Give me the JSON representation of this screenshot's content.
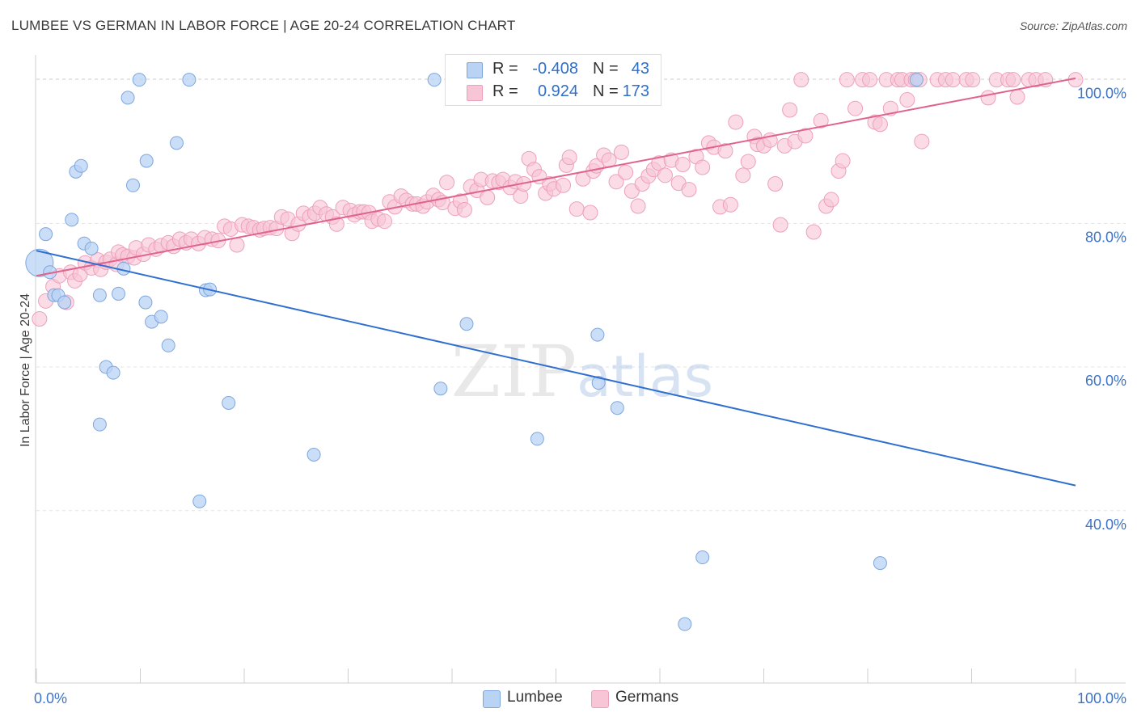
{
  "title": "LUMBEE VS GERMAN IN LABOR FORCE | AGE 20-24 CORRELATION CHART",
  "source": "Source: ZipAtlas.com",
  "watermark": "ZIPatlas",
  "legend": {
    "rows": [
      {
        "r_label": "R =",
        "r_value": "-0.408",
        "n_label": "N =",
        "n_value": "43"
      },
      {
        "r_label": "R =",
        "r_value": "0.924",
        "n_label": "N =",
        "n_value": "173"
      }
    ]
  },
  "bottom_legend": {
    "lumbee": "Lumbee",
    "germans": "Germans"
  },
  "colors": {
    "lumbee_fill": "#b9d3f5",
    "lumbee_stroke": "#7fa6dc",
    "lumbee_line": "#2f6fcf",
    "germans_fill": "#f8c5d6",
    "germans_stroke": "#eda0bb",
    "germans_line": "#e0638f",
    "tick_label": "#3d74c8"
  },
  "chart_data": {
    "type": "scatter",
    "title": "LUMBEE VS GERMAN IN LABOR FORCE | AGE 20-24 CORRELATION CHART",
    "xlabel": "",
    "ylabel": "In Labor Force | Age 20-24",
    "xlim": [
      0,
      100
    ],
    "ylim": [
      16,
      103
    ],
    "x_tick_labels": [
      "0.0%",
      "100.0%"
    ],
    "y_ticks": [
      40,
      60,
      80,
      100
    ],
    "y_tick_labels": [
      "40.0%",
      "60.0%",
      "80.0%",
      "100.0%"
    ],
    "series": [
      {
        "name": "Lumbee",
        "r": -0.408,
        "n": 43,
        "trend": {
          "x": [
            0,
            100
          ],
          "y": [
            76.2,
            43.5
          ]
        },
        "points": [
          [
            0.3,
            74.5
          ],
          [
            0.9,
            78.5
          ],
          [
            1.3,
            73.2
          ],
          [
            1.7,
            70.0
          ],
          [
            2.1,
            70.0
          ],
          [
            2.7,
            69.0
          ],
          [
            3.4,
            80.5
          ],
          [
            3.8,
            87.2
          ],
          [
            4.3,
            88.0
          ],
          [
            4.6,
            77.2
          ],
          [
            5.3,
            76.5
          ],
          [
            6.1,
            70.0
          ],
          [
            6.1,
            52.0
          ],
          [
            6.7,
            60.0
          ],
          [
            7.4,
            59.2
          ],
          [
            7.9,
            70.2
          ],
          [
            8.4,
            73.7
          ],
          [
            8.8,
            97.5
          ],
          [
            9.3,
            85.3
          ],
          [
            9.9,
            100.0
          ],
          [
            10.5,
            69.0
          ],
          [
            10.6,
            88.7
          ],
          [
            11.1,
            66.3
          ],
          [
            12.0,
            67.0
          ],
          [
            12.7,
            63.0
          ],
          [
            13.5,
            91.2
          ],
          [
            14.7,
            100.0
          ],
          [
            15.7,
            41.3
          ],
          [
            16.3,
            70.7
          ],
          [
            16.7,
            70.8
          ],
          [
            18.5,
            55.0
          ],
          [
            26.7,
            47.8
          ],
          [
            38.3,
            100.0
          ],
          [
            38.9,
            57.0
          ],
          [
            41.4,
            66.0
          ],
          [
            48.2,
            50.0
          ],
          [
            54.0,
            64.5
          ],
          [
            54.1,
            57.8
          ],
          [
            55.9,
            54.3
          ],
          [
            64.1,
            33.5
          ],
          [
            62.4,
            24.2
          ],
          [
            81.2,
            32.7
          ],
          [
            84.7,
            100.0
          ]
        ]
      },
      {
        "name": "Germans",
        "r": 0.924,
        "n": 173,
        "trend": {
          "x": [
            0,
            100
          ],
          "y": [
            72.7,
            100.2
          ]
        },
        "points": [
          [
            0.3,
            66.7
          ],
          [
            0.9,
            69.2
          ],
          [
            1.6,
            71.2
          ],
          [
            2.2,
            72.7
          ],
          [
            2.9,
            69.0
          ],
          [
            3.3,
            73.2
          ],
          [
            3.7,
            72.0
          ],
          [
            4.2,
            72.9
          ],
          [
            4.7,
            74.5
          ],
          [
            5.3,
            73.8
          ],
          [
            5.9,
            74.9
          ],
          [
            6.2,
            73.6
          ],
          [
            6.7,
            74.6
          ],
          [
            7.1,
            75.0
          ],
          [
            7.7,
            74.3
          ],
          [
            7.9,
            76.0
          ],
          [
            8.3,
            75.6
          ],
          [
            8.8,
            75.4
          ],
          [
            9.4,
            75.2
          ],
          [
            9.6,
            76.6
          ],
          [
            10.3,
            75.7
          ],
          [
            10.8,
            77.0
          ],
          [
            11.5,
            76.4
          ],
          [
            12.0,
            76.9
          ],
          [
            12.7,
            77.3
          ],
          [
            13.2,
            76.8
          ],
          [
            13.8,
            77.8
          ],
          [
            14.4,
            77.3
          ],
          [
            14.9,
            77.8
          ],
          [
            15.6,
            77.2
          ],
          [
            16.2,
            78.0
          ],
          [
            16.9,
            77.8
          ],
          [
            17.5,
            77.6
          ],
          [
            18.1,
            79.6
          ],
          [
            18.7,
            79.2
          ],
          [
            19.3,
            77.0
          ],
          [
            19.8,
            79.8
          ],
          [
            20.4,
            79.6
          ],
          [
            20.9,
            79.4
          ],
          [
            21.5,
            79.1
          ],
          [
            21.9,
            79.3
          ],
          [
            22.5,
            79.4
          ],
          [
            23.1,
            79.3
          ],
          [
            23.6,
            80.9
          ],
          [
            24.2,
            80.6
          ],
          [
            24.6,
            78.6
          ],
          [
            25.2,
            79.9
          ],
          [
            25.7,
            81.4
          ],
          [
            26.3,
            80.9
          ],
          [
            26.8,
            81.4
          ],
          [
            27.3,
            82.2
          ],
          [
            27.9,
            81.3
          ],
          [
            28.5,
            80.9
          ],
          [
            28.9,
            79.9
          ],
          [
            29.5,
            82.2
          ],
          [
            30.2,
            81.8
          ],
          [
            30.6,
            81.2
          ],
          [
            31.1,
            81.6
          ],
          [
            31.5,
            81.6
          ],
          [
            32.0,
            81.5
          ],
          [
            32.3,
            80.3
          ],
          [
            32.9,
            80.6
          ],
          [
            33.5,
            80.3
          ],
          [
            34.0,
            83.0
          ],
          [
            34.5,
            82.3
          ],
          [
            35.1,
            83.8
          ],
          [
            35.6,
            83.2
          ],
          [
            36.2,
            82.7
          ],
          [
            36.6,
            82.7
          ],
          [
            37.2,
            82.4
          ],
          [
            37.6,
            83.0
          ],
          [
            38.2,
            83.9
          ],
          [
            38.7,
            83.3
          ],
          [
            39.1,
            82.9
          ],
          [
            39.5,
            85.7
          ],
          [
            40.3,
            82.1
          ],
          [
            40.8,
            83.1
          ],
          [
            41.2,
            81.9
          ],
          [
            41.8,
            85.1
          ],
          [
            42.4,
            84.6
          ],
          [
            42.8,
            86.1
          ],
          [
            43.4,
            83.6
          ],
          [
            43.9,
            85.9
          ],
          [
            44.5,
            85.7
          ],
          [
            44.9,
            86.1
          ],
          [
            45.6,
            85.0
          ],
          [
            46.1,
            85.8
          ],
          [
            46.6,
            83.8
          ],
          [
            46.9,
            85.5
          ],
          [
            47.4,
            89.0
          ],
          [
            47.9,
            87.5
          ],
          [
            48.4,
            86.5
          ],
          [
            49.0,
            84.2
          ],
          [
            49.4,
            85.5
          ],
          [
            49.8,
            84.8
          ],
          [
            50.7,
            85.3
          ],
          [
            51.0,
            88.1
          ],
          [
            51.3,
            89.2
          ],
          [
            52.0,
            82.0
          ],
          [
            52.6,
            86.2
          ],
          [
            53.3,
            81.5
          ],
          [
            53.6,
            87.3
          ],
          [
            53.9,
            88.0
          ],
          [
            54.6,
            89.5
          ],
          [
            55.1,
            88.8
          ],
          [
            55.8,
            85.8
          ],
          [
            56.3,
            89.9
          ],
          [
            56.7,
            87.1
          ],
          [
            57.3,
            84.5
          ],
          [
            57.9,
            82.4
          ],
          [
            58.3,
            85.5
          ],
          [
            58.9,
            86.6
          ],
          [
            59.4,
            87.5
          ],
          [
            59.9,
            88.4
          ],
          [
            60.5,
            86.7
          ],
          [
            61.1,
            88.8
          ],
          [
            61.8,
            85.6
          ],
          [
            62.2,
            88.2
          ],
          [
            62.8,
            84.7
          ],
          [
            63.5,
            89.3
          ],
          [
            64.1,
            87.8
          ],
          [
            64.7,
            91.2
          ],
          [
            65.2,
            90.6
          ],
          [
            65.8,
            82.3
          ],
          [
            66.3,
            90.1
          ],
          [
            66.8,
            82.6
          ],
          [
            67.3,
            94.1
          ],
          [
            68.0,
            86.7
          ],
          [
            68.5,
            88.6
          ],
          [
            69.1,
            92.1
          ],
          [
            69.4,
            91.0
          ],
          [
            70.0,
            90.8
          ],
          [
            70.6,
            91.6
          ],
          [
            71.1,
            85.5
          ],
          [
            71.6,
            79.8
          ],
          [
            72.0,
            90.8
          ],
          [
            72.5,
            95.8
          ],
          [
            73.0,
            91.4
          ],
          [
            73.6,
            100.0
          ],
          [
            74.0,
            92.2
          ],
          [
            74.8,
            78.8
          ],
          [
            75.5,
            94.3
          ],
          [
            76.0,
            82.4
          ],
          [
            76.5,
            83.3
          ],
          [
            77.2,
            87.3
          ],
          [
            77.6,
            88.7
          ],
          [
            78.0,
            100.0
          ],
          [
            78.8,
            96.0
          ],
          [
            79.5,
            100.0
          ],
          [
            80.2,
            100.0
          ],
          [
            80.7,
            94.1
          ],
          [
            81.2,
            93.8
          ],
          [
            81.8,
            100.0
          ],
          [
            82.2,
            96.0
          ],
          [
            82.9,
            100.0
          ],
          [
            83.3,
            100.0
          ],
          [
            83.8,
            97.2
          ],
          [
            84.2,
            100.0
          ],
          [
            84.6,
            100.0
          ],
          [
            85.0,
            100.0
          ],
          [
            85.2,
            91.4
          ],
          [
            86.7,
            100.0
          ],
          [
            87.5,
            100.0
          ],
          [
            88.2,
            100.0
          ],
          [
            89.5,
            100.0
          ],
          [
            90.1,
            100.0
          ],
          [
            91.6,
            97.5
          ],
          [
            92.4,
            100.0
          ],
          [
            93.5,
            100.0
          ],
          [
            94.0,
            100.0
          ],
          [
            94.4,
            97.6
          ],
          [
            95.5,
            100.0
          ],
          [
            96.2,
            100.0
          ],
          [
            97.1,
            100.0
          ],
          [
            100.0,
            100.0
          ]
        ]
      }
    ]
  }
}
